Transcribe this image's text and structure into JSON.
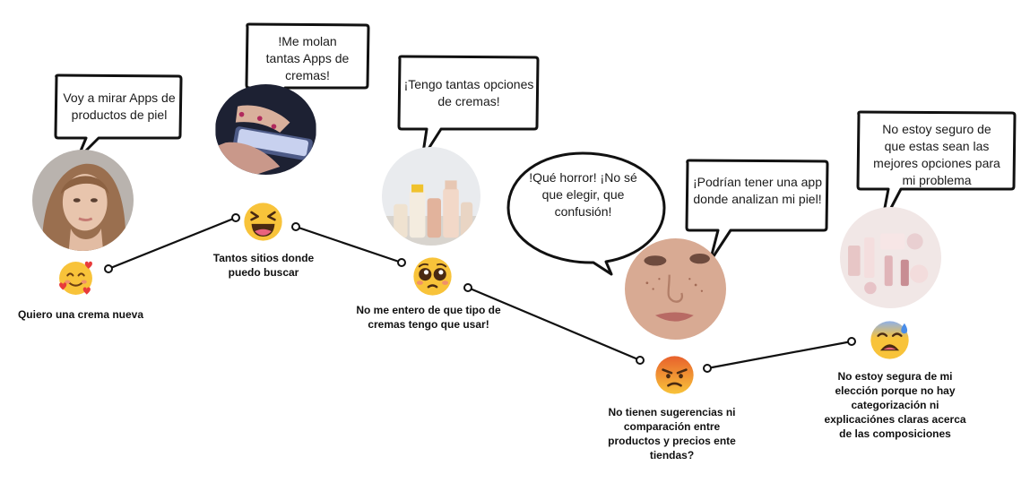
{
  "journey": {
    "stages": [
      {
        "bubble": "Voy a mirar Apps de productos de piel",
        "caption": "Quiero una crema nueva",
        "emoji": "smiling-face-with-hearts-icon",
        "photo": "young-woman-portrait"
      },
      {
        "bubble": "!Me molan tantas Apps de cremas!",
        "caption": "Tantos sitios donde puedo buscar",
        "emoji": "laughing-squinting-face-icon",
        "photo": "hands-holding-phone"
      },
      {
        "bubble": "¡Tengo tantas opciones de cremas!",
        "caption": "No me entero de que tipo de cremas tengo que usar!",
        "emoji": "pleading-face-icon",
        "photo": "cream-bottles"
      },
      {
        "bubble": "!Qué horror! ¡No sé que elegir, que confusión!",
        "bubble2": "¡Podrían tener una app donde analizan mi piel!",
        "caption": "No tienen sugerencias ni comparación entre productos y precios ente tiendas?",
        "emoji": "angry-face-icon",
        "photo": "freckled-face-closeup"
      },
      {
        "bubble": "No estoy seguro de que estas sean las mejores opciones para mi problema",
        "caption": "No estoy segura de mi elección porque no hay categorización ni explicaciónes claras acerca de las composiciones",
        "emoji": "weary-sweat-face-icon",
        "photo": "pink-skincare-flatlay"
      }
    ]
  },
  "colors": {
    "line": "#111111",
    "emoji_yellow": "#f8c33a",
    "angry_red": "#e8612c"
  }
}
